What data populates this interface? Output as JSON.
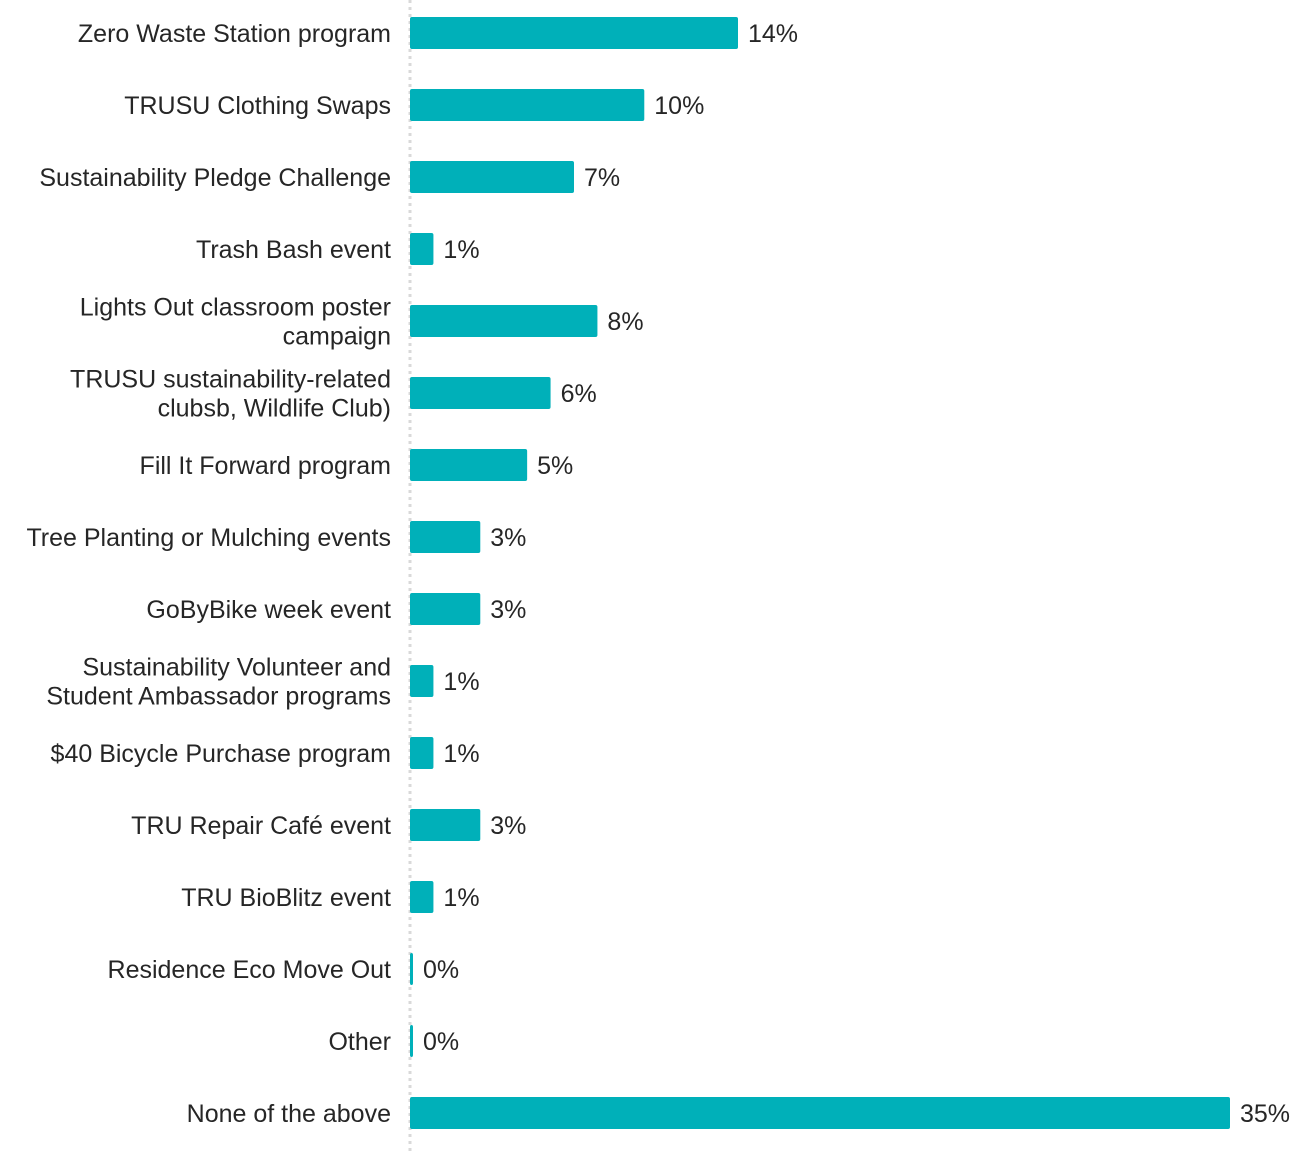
{
  "chart_data": {
    "type": "bar",
    "orientation": "horizontal",
    "categories": [
      [
        "Zero Waste Station program"
      ],
      [
        "TRUSU Clothing Swaps"
      ],
      [
        "Sustainability Pledge Challenge"
      ],
      [
        "Trash Bash event"
      ],
      [
        "Lights Out classroom poster",
        "campaign"
      ],
      [
        "TRUSU sustainability-related",
        "clubsb, Wildlife Club)"
      ],
      [
        "Fill It Forward program"
      ],
      [
        "Tree Planting or Mulching events"
      ],
      [
        "GoByBike week event"
      ],
      [
        "Sustainability Volunteer and",
        "Student Ambassador programs"
      ],
      [
        "$40 Bicycle Purchase program"
      ],
      [
        "TRU Repair Café event"
      ],
      [
        "TRU BioBlitz event"
      ],
      [
        "Residence Eco Move Out"
      ],
      [
        "Other"
      ],
      [
        "None of the above"
      ]
    ],
    "values": [
      14,
      10,
      7,
      1,
      8,
      6,
      5,
      3,
      3,
      1,
      1,
      3,
      1,
      0,
      0,
      35
    ],
    "value_labels": [
      "14%",
      "10%",
      "7%",
      "1%",
      "8%",
      "6%",
      "5%",
      "3%",
      "3%",
      "1%",
      "1%",
      "3%",
      "1%",
      "0%",
      "0%",
      "35%"
    ],
    "unit": "%",
    "xlim": [
      0,
      35
    ],
    "title": "",
    "xlabel": "",
    "ylabel": "",
    "legend": "none",
    "grid": false,
    "colors": {
      "bar": "#00B0B9",
      "axis": "#D9D9D9",
      "text": "#262626"
    }
  }
}
